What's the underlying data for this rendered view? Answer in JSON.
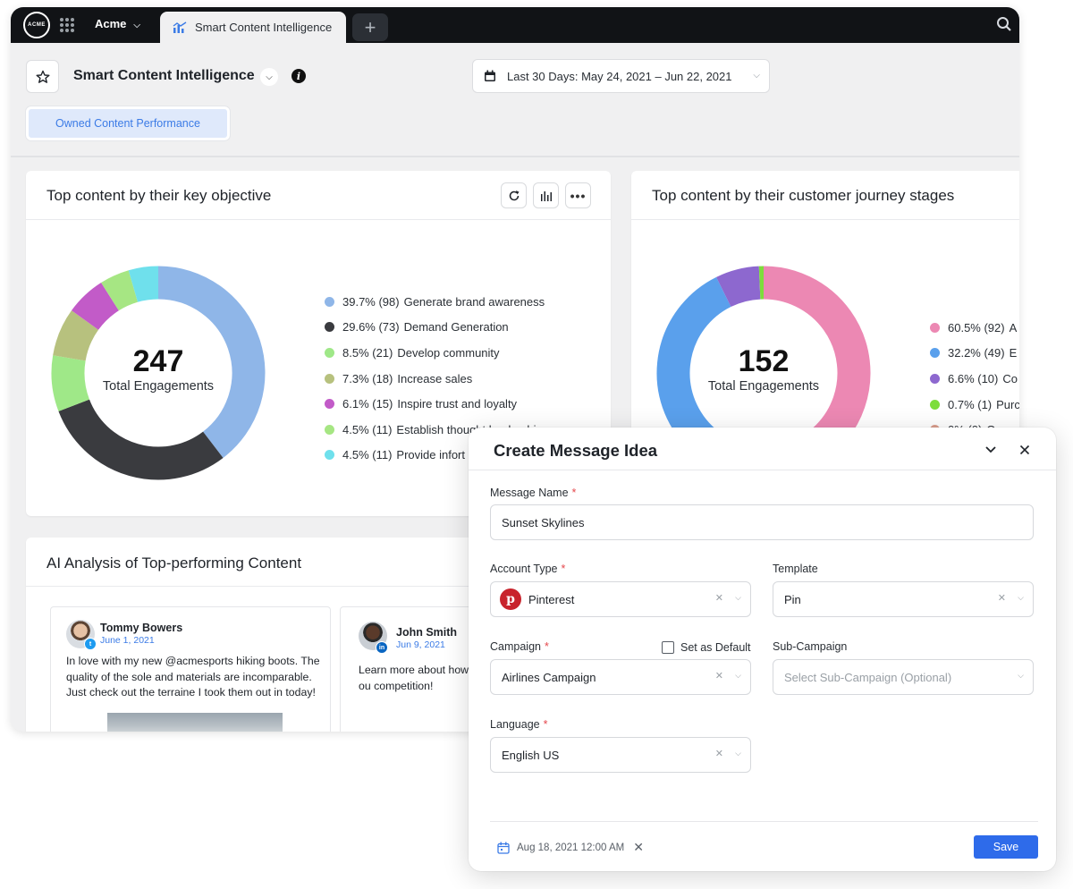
{
  "topbar": {
    "logo_text": "ACME",
    "workspace": "Acme",
    "active_tab": "Smart Content Intelligence",
    "add_tab": "+"
  },
  "header": {
    "title": "Smart Content Intelligence",
    "date_range": "Last 30 Days: May 24, 2021 – Jun 22, 2021",
    "view_tab": "Owned Content Performance"
  },
  "card1": {
    "title": "Top content by their key objective",
    "chart_data": {
      "type": "pie",
      "total": 247,
      "center_label": "Total Engagements",
      "slices": [
        {
          "label": "Generate brand awareness",
          "percent": 39.7,
          "count": 98,
          "color": "#8fb6e8"
        },
        {
          "label": "Demand Generation",
          "percent": 29.6,
          "count": 73,
          "color": "#3a3b3f"
        },
        {
          "label": "Develop community",
          "percent": 8.5,
          "count": 21,
          "color": "#9fe888"
        },
        {
          "label": "Increase sales",
          "percent": 7.3,
          "count": 18,
          "color": "#b7c17e"
        },
        {
          "label": "Inspire trust and loyalty",
          "percent": 6.1,
          "count": 15,
          "color": "#c25bc8"
        },
        {
          "label": "Establish thought leadership",
          "percent": 4.5,
          "count": 11,
          "color": "#a6e683"
        },
        {
          "label": "Provide information",
          "percent": 4.5,
          "count": 11,
          "color": "#6fe0ec"
        }
      ]
    },
    "legend": [
      {
        "pct": "39.7% (98)",
        "label": "Generate brand awareness"
      },
      {
        "pct": "29.6% (73)",
        "label": "Demand Generation"
      },
      {
        "pct": "8.5% (21)",
        "label": "Develop community"
      },
      {
        "pct": "7.3% (18)",
        "label": "Increase sales"
      },
      {
        "pct": "6.1% (15)",
        "label": "Inspire trust and loyalty"
      },
      {
        "pct": "4.5% (11)",
        "label": "Establish thought leadership"
      },
      {
        "pct": "4.5% (11)",
        "label": "Provide infort"
      }
    ]
  },
  "card2": {
    "title": "Top content by their customer journey stages",
    "chart_data": {
      "type": "pie",
      "total": 152,
      "center_label": "Total Engagements",
      "slices": [
        {
          "label": "A",
          "percent": 60.5,
          "count": 92,
          "color": "#ec88b3"
        },
        {
          "label": "E",
          "percent": 32.2,
          "count": 49,
          "color": "#5aa0ec"
        },
        {
          "label": "Co",
          "percent": 6.6,
          "count": 10,
          "color": "#8d68cf"
        },
        {
          "label": "Purc",
          "percent": 0.7,
          "count": 1,
          "color": "#7ddd3c"
        },
        {
          "label": "Owne",
          "percent": 0,
          "count": 0,
          "color": "#db9e8d"
        }
      ]
    },
    "legend": [
      {
        "pct": "60.5% (92)",
        "label": "A"
      },
      {
        "pct": "32.2% (49)",
        "label": "E"
      },
      {
        "pct": "6.6% (10)",
        "label": "Co"
      },
      {
        "pct": "0.7% (1)",
        "label": "Purc"
      },
      {
        "pct": "0% (0)",
        "label": "Owne"
      }
    ]
  },
  "ai_analysis": {
    "title": "AI Analysis of Top-performing Content",
    "posts": [
      {
        "name": "Tommy Bowers",
        "date": "June 1, 2021",
        "network": "twitter",
        "text": "In love with my new @acmesports hiking boots. The quality of the sole and materials are incomparable. Just check out the terraine I took them out in today!"
      },
      {
        "name": "John Smith",
        "date": "Jun 9, 2021",
        "network": "linkedin",
        "text": "Learn more about how ou competition!"
      }
    ]
  },
  "modal": {
    "title": "Create Message Idea",
    "message_name_label": "Message Name",
    "message_name_value": "Sunset Skylines",
    "account_type_label": "Account Type",
    "account_type_value": "Pinterest",
    "template_label": "Template",
    "template_value": "Pin",
    "campaign_label": "Campaign",
    "set_default_label": "Set as Default",
    "campaign_value": "Airlines Campaign",
    "sub_campaign_label": "Sub-Campaign",
    "sub_campaign_placeholder": "Select Sub-Campaign (Optional)",
    "language_label": "Language",
    "language_value": "English US",
    "footer_date": "Aug 18, 2021 12:00 AM",
    "save_label": "Save",
    "required_mark": "*"
  }
}
